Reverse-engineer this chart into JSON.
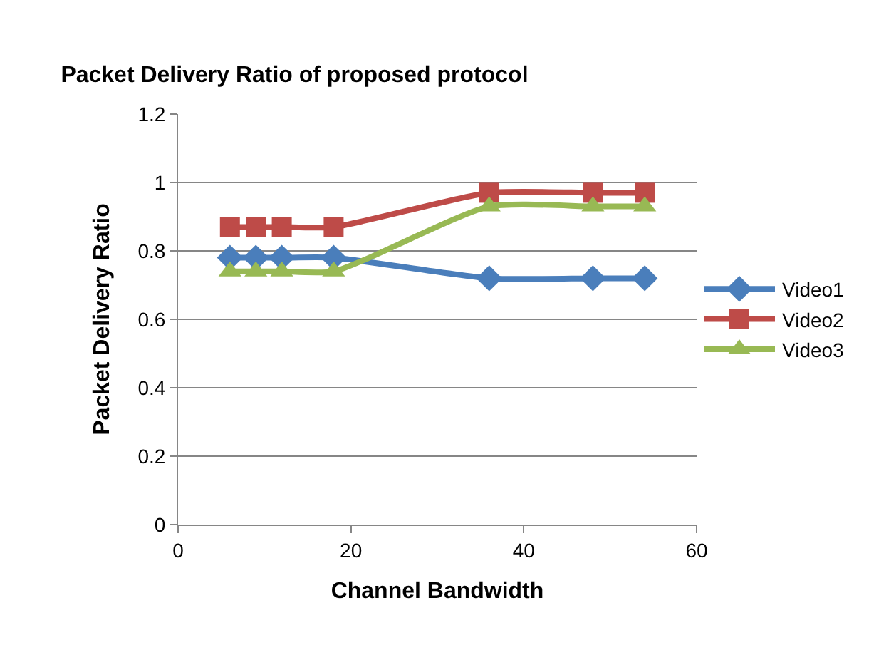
{
  "chart_data": {
    "type": "line",
    "title": "Packet Delivery Ratio of proposed protocol",
    "xlabel": "Channel Bandwidth",
    "ylabel": "Packet Delivery Ratio",
    "x": [
      6,
      9,
      12,
      18,
      36,
      48,
      54
    ],
    "series": [
      {
        "name": "Video1",
        "color": "#4a7ebb",
        "marker": "diamond",
        "values": [
          0.78,
          0.78,
          0.78,
          0.78,
          0.72,
          0.72,
          0.72
        ]
      },
      {
        "name": "Video2",
        "color": "#be4b48",
        "marker": "square",
        "values": [
          0.87,
          0.87,
          0.87,
          0.87,
          0.97,
          0.97,
          0.97
        ]
      },
      {
        "name": "Video3",
        "color": "#98b954",
        "marker": "triangle",
        "values": [
          0.74,
          0.74,
          0.74,
          0.74,
          0.93,
          0.93,
          0.93
        ]
      }
    ],
    "xlim": [
      0,
      60
    ],
    "xticks": [
      0,
      20,
      40,
      60
    ],
    "ylim": [
      0,
      1.2
    ],
    "yticks": [
      0,
      0.2,
      0.4,
      0.6,
      0.8,
      1,
      1.2
    ],
    "grid": "y",
    "legend": "right",
    "line_style": "solid"
  }
}
